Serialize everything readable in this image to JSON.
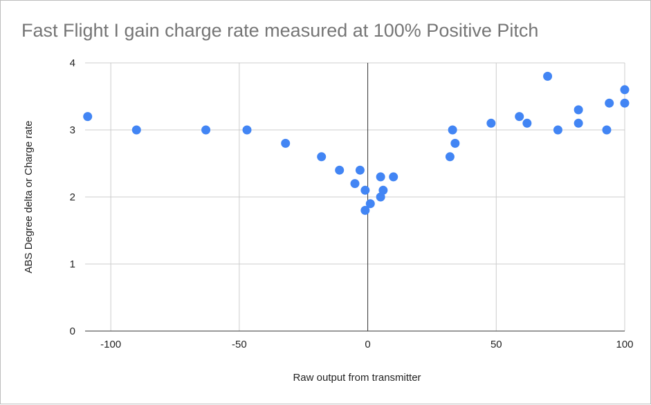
{
  "chart_data": {
    "type": "scatter",
    "title": "Fast Flight I gain charge rate measured at 100% Positive Pitch",
    "xlabel": "Raw output from transmitter",
    "ylabel": "ABS Degree delta or Charge rate",
    "xlim": [
      -110,
      100
    ],
    "ylim": [
      0,
      4
    ],
    "xticks": [
      -100,
      -50,
      0,
      50,
      100
    ],
    "yticks": [
      0,
      1,
      2,
      3,
      4
    ],
    "grid": true,
    "legend": "none",
    "series": [
      {
        "color": "#4285f4",
        "points": [
          [
            -109,
            3.2
          ],
          [
            -90,
            3.0
          ],
          [
            -63,
            3.0
          ],
          [
            -47,
            3.0
          ],
          [
            -32,
            2.8
          ],
          [
            -18,
            2.6
          ],
          [
            -11,
            2.4
          ],
          [
            -5,
            2.2
          ],
          [
            -3,
            2.4
          ],
          [
            -1,
            2.1
          ],
          [
            -1,
            1.8
          ],
          [
            1,
            1.9
          ],
          [
            5,
            2.3
          ],
          [
            5,
            2.0
          ],
          [
            6,
            2.1
          ],
          [
            10,
            2.3
          ],
          [
            32,
            2.6
          ],
          [
            33,
            3.0
          ],
          [
            34,
            2.8
          ],
          [
            48,
            3.1
          ],
          [
            59,
            3.2
          ],
          [
            62,
            3.1
          ],
          [
            70,
            3.8
          ],
          [
            74,
            3.0
          ],
          [
            82,
            3.3
          ],
          [
            82,
            3.1
          ],
          [
            93,
            3.0
          ],
          [
            94,
            3.4
          ],
          [
            100,
            3.6
          ],
          [
            100,
            3.4
          ]
        ]
      }
    ]
  }
}
